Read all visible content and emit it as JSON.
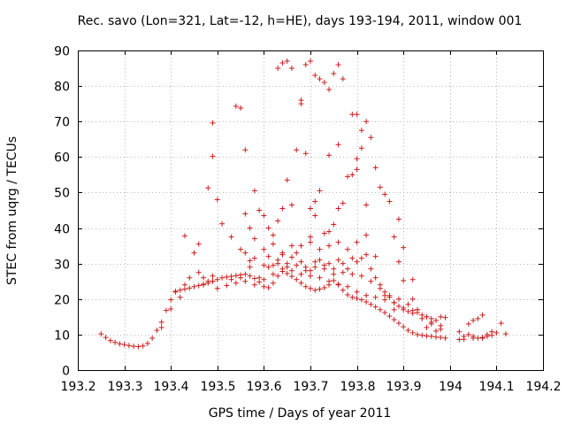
{
  "chart_data": {
    "type": "scatter",
    "title": "Rec. savo (Lon=321, Lat=-12, h=HE), days 193-194, 2011, window 001",
    "xlabel": "GPS time / Days of year 2011",
    "ylabel": "STEC from uqrg / TECUs",
    "xlim": [
      193.2,
      194.2
    ],
    "ylim": [
      0,
      90
    ],
    "xticks": [
      193.2,
      193.3,
      193.4,
      193.5,
      193.6,
      193.7,
      193.8,
      193.9,
      194.0,
      194.1,
      194.2
    ],
    "xtick_labels": [
      "193.2",
      "193.3",
      "193.4",
      "193.5",
      "193.6",
      "193.7",
      "193.8",
      "193.9",
      "194",
      "194.1",
      "194.2"
    ],
    "yticks": [
      0,
      10,
      20,
      30,
      40,
      50,
      60,
      70,
      80,
      90
    ],
    "ytick_labels": [
      "0",
      "10",
      "20",
      "30",
      "40",
      "50",
      "60",
      "70",
      "80",
      "90"
    ],
    "grid": true,
    "marker": "+",
    "color": "#cc1f1f",
    "series": [
      {
        "points": [
          [
            193.25,
            10.2
          ],
          [
            193.26,
            9.2
          ],
          [
            193.27,
            8.3
          ],
          [
            193.28,
            7.8
          ],
          [
            193.29,
            7.4
          ],
          [
            193.3,
            7.2
          ],
          [
            193.31,
            6.9
          ],
          [
            193.32,
            6.7
          ],
          [
            193.33,
            6.6
          ],
          [
            193.34,
            6.8
          ],
          [
            193.35,
            7.5
          ],
          [
            193.36,
            9.0
          ],
          [
            193.37,
            11.2
          ],
          [
            193.38,
            13.5
          ],
          [
            193.39,
            16.8
          ],
          [
            193.4,
            19.8
          ],
          [
            193.41,
            22.2
          ],
          [
            193.42,
            22.5
          ],
          [
            193.43,
            22.8
          ],
          [
            193.44,
            23.1
          ],
          [
            193.45,
            23.5
          ],
          [
            193.46,
            23.8
          ],
          [
            193.47,
            24.2
          ],
          [
            193.48,
            24.5
          ],
          [
            193.49,
            25.0
          ],
          [
            193.5,
            25.5
          ],
          [
            193.51,
            26.0
          ],
          [
            193.52,
            26.2
          ],
          [
            193.53,
            26.4
          ],
          [
            193.54,
            26.6
          ],
          [
            193.55,
            26.8
          ],
          [
            193.56,
            27.0
          ],
          [
            193.57,
            26.5
          ],
          [
            193.58,
            25.8
          ],
          [
            193.59,
            24.8
          ],
          [
            193.6,
            23.5
          ],
          [
            193.61,
            23.2
          ],
          [
            193.62,
            24.5
          ],
          [
            193.63,
            26.5
          ],
          [
            193.64,
            27.8
          ],
          [
            193.65,
            27.2
          ],
          [
            193.66,
            26.4
          ],
          [
            193.67,
            25.5
          ],
          [
            193.68,
            24.5
          ],
          [
            193.69,
            23.5
          ],
          [
            193.7,
            23.0
          ],
          [
            193.71,
            22.5
          ],
          [
            193.72,
            22.8
          ],
          [
            193.73,
            23.2
          ],
          [
            193.74,
            24.0
          ],
          [
            193.75,
            25.2
          ],
          [
            193.76,
            24.0
          ],
          [
            193.77,
            22.5
          ],
          [
            193.78,
            21.2
          ],
          [
            193.79,
            20.5
          ],
          [
            193.8,
            20.2
          ],
          [
            193.81,
            19.8
          ],
          [
            193.82,
            19.2
          ],
          [
            193.83,
            18.5
          ],
          [
            193.84,
            17.8
          ],
          [
            193.85,
            17.0
          ],
          [
            193.86,
            16.2
          ],
          [
            193.87,
            15.2
          ],
          [
            193.88,
            14.2
          ],
          [
            193.89,
            13.2
          ],
          [
            193.9,
            12.2
          ],
          [
            193.91,
            11.2
          ],
          [
            193.92,
            10.5
          ],
          [
            193.93,
            10.0
          ],
          [
            193.94,
            9.8
          ],
          [
            193.95,
            9.6
          ],
          [
            193.96,
            9.5
          ],
          [
            193.97,
            9.3
          ],
          [
            193.98,
            9.2
          ],
          [
            193.99,
            9.0
          ],
          [
            193.38,
            12.0
          ],
          [
            193.4,
            17.2
          ],
          [
            193.42,
            20.5
          ],
          [
            193.44,
            26.0
          ],
          [
            193.46,
            27.5
          ],
          [
            193.48,
            25.0
          ],
          [
            193.5,
            23.0
          ],
          [
            193.52,
            23.8
          ],
          [
            193.54,
            24.5
          ],
          [
            193.56,
            25.0
          ],
          [
            193.58,
            24.0
          ],
          [
            193.6,
            25.5
          ],
          [
            193.62,
            27.0
          ],
          [
            193.64,
            28.5
          ],
          [
            193.66,
            28.0
          ],
          [
            193.68,
            27.0
          ],
          [
            193.7,
            26.5
          ],
          [
            193.72,
            26.0
          ],
          [
            193.74,
            25.0
          ],
          [
            193.76,
            24.2
          ],
          [
            193.78,
            23.5
          ],
          [
            193.8,
            22.0
          ],
          [
            193.82,
            21.0
          ],
          [
            193.84,
            20.5
          ],
          [
            193.86,
            19.8
          ],
          [
            193.88,
            19.0
          ],
          [
            193.9,
            17.5
          ],
          [
            193.92,
            16.0
          ],
          [
            193.94,
            14.5
          ],
          [
            193.96,
            13.0
          ],
          [
            193.98,
            11.5
          ],
          [
            193.43,
            37.8
          ],
          [
            193.45,
            33.0
          ],
          [
            193.46,
            35.5
          ],
          [
            193.47,
            26.0
          ],
          [
            193.49,
            26.5
          ],
          [
            193.51,
            41.2
          ],
          [
            193.53,
            37.5
          ],
          [
            193.55,
            34.0
          ],
          [
            193.56,
            33.0
          ],
          [
            193.57,
            30.8
          ],
          [
            193.58,
            31.5
          ],
          [
            193.59,
            26.0
          ],
          [
            193.6,
            29.5
          ],
          [
            193.61,
            32.0
          ],
          [
            193.62,
            29.5
          ],
          [
            193.63,
            31.0
          ],
          [
            193.64,
            32.5
          ],
          [
            193.65,
            30.0
          ],
          [
            193.66,
            31.8
          ],
          [
            193.67,
            33.0
          ],
          [
            193.68,
            30.5
          ],
          [
            193.69,
            29.0
          ],
          [
            193.7,
            28.0
          ],
          [
            193.71,
            30.5
          ],
          [
            193.72,
            31.0
          ],
          [
            193.73,
            29.5
          ],
          [
            193.74,
            30.0
          ],
          [
            193.75,
            28.5
          ],
          [
            193.76,
            31.0
          ],
          [
            193.77,
            30.0
          ],
          [
            193.78,
            28.5
          ],
          [
            193.79,
            31.5
          ],
          [
            193.8,
            30.5
          ],
          [
            193.81,
            31.5
          ],
          [
            193.82,
            32.5
          ],
          [
            193.83,
            28.5
          ],
          [
            193.84,
            26.0
          ],
          [
            193.85,
            24.0
          ],
          [
            193.86,
            22.0
          ],
          [
            193.87,
            20.5
          ],
          [
            193.88,
            19.0
          ],
          [
            193.89,
            18.0
          ],
          [
            193.9,
            17.0
          ],
          [
            193.91,
            16.5
          ],
          [
            193.92,
            16.8
          ],
          [
            193.93,
            16.2
          ],
          [
            193.94,
            15.5
          ],
          [
            193.95,
            15.0
          ],
          [
            193.96,
            14.5
          ],
          [
            193.97,
            14.0
          ],
          [
            193.98,
            15.0
          ],
          [
            193.99,
            14.8
          ],
          [
            193.41,
            22.0
          ],
          [
            193.43,
            24.0
          ],
          [
            193.47,
            24.0
          ],
          [
            193.49,
            25.0
          ],
          [
            193.53,
            25.5
          ],
          [
            193.55,
            26.0
          ],
          [
            193.57,
            29.0
          ],
          [
            193.61,
            29.0
          ],
          [
            193.63,
            30.0
          ],
          [
            193.65,
            29.0
          ],
          [
            193.67,
            29.5
          ],
          [
            193.69,
            28.0
          ],
          [
            193.71,
            29.0
          ],
          [
            193.73,
            28.5
          ],
          [
            193.75,
            27.0
          ],
          [
            193.77,
            27.5
          ],
          [
            193.79,
            27.0
          ],
          [
            193.81,
            26.5
          ],
          [
            193.83,
            25.0
          ],
          [
            193.85,
            23.0
          ],
          [
            193.87,
            21.0
          ],
          [
            193.89,
            20.0
          ],
          [
            193.91,
            18.5
          ],
          [
            193.93,
            17.0
          ],
          [
            193.95,
            12.0
          ],
          [
            193.97,
            11.0
          ],
          [
            193.48,
            51.3
          ],
          [
            193.49,
            60.2
          ],
          [
            193.49,
            69.6
          ],
          [
            193.5,
            48.0
          ],
          [
            193.54,
            74.3
          ],
          [
            193.55,
            73.8
          ],
          [
            193.56,
            62.0
          ],
          [
            193.56,
            44.0
          ],
          [
            193.58,
            50.5
          ],
          [
            193.59,
            45.0
          ],
          [
            193.6,
            43.5
          ],
          [
            193.61,
            40.0
          ],
          [
            193.62,
            38.0
          ],
          [
            193.63,
            42.0
          ],
          [
            193.64,
            45.5
          ],
          [
            193.65,
            53.5
          ],
          [
            193.66,
            46.5
          ],
          [
            193.67,
            62.0
          ],
          [
            193.68,
            76.0
          ],
          [
            193.68,
            75.0
          ],
          [
            193.69,
            61.0
          ],
          [
            193.7,
            45.5
          ],
          [
            193.7,
            37.5
          ],
          [
            193.71,
            47.5
          ],
          [
            193.71,
            43.5
          ],
          [
            193.72,
            50.5
          ],
          [
            193.73,
            38.5
          ],
          [
            193.74,
            60.5
          ],
          [
            193.74,
            39.0
          ],
          [
            193.75,
            41.0
          ],
          [
            193.76,
            45.5
          ],
          [
            193.76,
            63.5
          ],
          [
            193.77,
            47.0
          ],
          [
            193.78,
            54.5
          ],
          [
            193.79,
            55.0
          ],
          [
            193.79,
            72.0
          ],
          [
            193.8,
            56.5
          ],
          [
            193.8,
            59.5
          ],
          [
            193.81,
            62.5
          ],
          [
            193.81,
            67.5
          ],
          [
            193.82,
            46.5
          ],
          [
            193.83,
            65.5
          ],
          [
            193.84,
            57.0
          ],
          [
            193.85,
            51.5
          ],
          [
            193.86,
            49.5
          ],
          [
            193.87,
            47.5
          ],
          [
            193.88,
            37.5
          ],
          [
            193.89,
            30.5
          ],
          [
            193.89,
            42.5
          ],
          [
            193.9,
            34.5
          ],
          [
            193.9,
            25.2
          ],
          [
            193.92,
            25.5
          ],
          [
            193.63,
            85.0
          ],
          [
            193.64,
            86.5
          ],
          [
            193.65,
            87.0
          ],
          [
            193.66,
            85.0
          ],
          [
            193.69,
            86.0
          ],
          [
            193.7,
            87.0
          ],
          [
            193.71,
            83.0
          ],
          [
            193.72,
            82.0
          ],
          [
            193.73,
            81.0
          ],
          [
            193.74,
            79.0
          ],
          [
            193.75,
            83.5
          ],
          [
            193.76,
            86.0
          ],
          [
            193.77,
            82.0
          ],
          [
            193.8,
            72.0
          ],
          [
            193.82,
            70.0
          ],
          [
            193.57,
            40.0
          ],
          [
            193.58,
            37.0
          ],
          [
            193.6,
            34.0
          ],
          [
            193.62,
            35.5
          ],
          [
            193.64,
            33.0
          ],
          [
            193.66,
            35.0
          ],
          [
            193.68,
            35.0
          ],
          [
            193.7,
            36.0
          ],
          [
            193.72,
            34.0
          ],
          [
            193.74,
            35.0
          ],
          [
            193.76,
            36.0
          ],
          [
            193.78,
            34.0
          ],
          [
            193.8,
            36.0
          ],
          [
            193.82,
            38.0
          ],
          [
            193.84,
            32.0
          ],
          [
            193.86,
            21.0
          ],
          [
            193.88,
            17.0
          ],
          [
            193.92,
            20.0
          ],
          [
            193.93,
            17.0
          ],
          [
            193.95,
            15.0
          ],
          [
            193.96,
            13.5
          ],
          [
            193.98,
            12.5
          ],
          [
            194.02,
            10.8
          ],
          [
            194.03,
            9.5
          ],
          [
            194.04,
            10.0
          ],
          [
            194.05,
            9.0
          ],
          [
            194.06,
            9.0
          ],
          [
            194.07,
            9.2
          ],
          [
            194.08,
            9.5
          ],
          [
            194.09,
            9.8
          ],
          [
            194.1,
            10.5
          ],
          [
            194.02,
            8.6
          ],
          [
            194.03,
            8.7
          ],
          [
            194.05,
            9.5
          ],
          [
            194.07,
            9.0
          ],
          [
            194.08,
            10.0
          ],
          [
            194.09,
            10.8
          ],
          [
            194.04,
            13.0
          ],
          [
            194.05,
            14.0
          ],
          [
            194.06,
            14.5
          ],
          [
            194.07,
            15.5
          ],
          [
            194.11,
            13.2
          ],
          [
            194.12,
            10.2
          ]
        ]
      }
    ]
  }
}
